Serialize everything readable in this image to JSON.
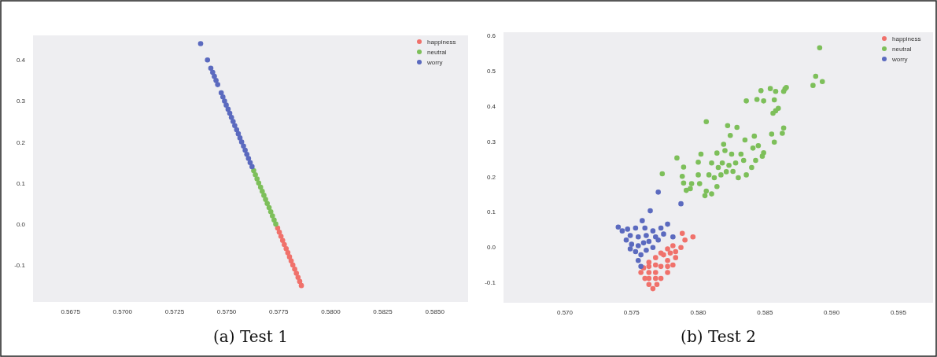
{
  "chart_data": [
    {
      "type": "scatter",
      "title": "(a) Test 1",
      "legend": "top right",
      "marker": "circle",
      "xlim": [
        0.5657,
        0.5866
      ],
      "ylim": [
        -0.19,
        0.46
      ],
      "xticks": [
        0.5675,
        {
          "value": 0.57,
          "label": "0.5700"
        },
        0.5725,
        {
          "value": 0.575,
          "label": "0.5750"
        },
        0.5775,
        {
          "value": 0.58,
          "label": "0.5800"
        },
        0.5825,
        {
          "value": 0.585,
          "label": "0.5850"
        }
      ],
      "yticks": [
        -0.1,
        {
          "value": 0,
          "label": "0.0"
        },
        0.1,
        0.2,
        0.3,
        0.4
      ],
      "series": [
        {
          "name": "happiness",
          "color": "#f0716b",
          "x": [
            0.57745,
            0.57753,
            0.57761,
            0.57769,
            0.57777,
            0.57786,
            0.57794,
            0.57802,
            0.5781,
            0.57818,
            0.57827,
            0.57835,
            0.57843,
            0.57851,
            0.57859
          ],
          "values": [
            -0.01,
            -0.02,
            -0.03,
            -0.04,
            -0.05,
            -0.06,
            -0.07,
            -0.08,
            -0.09,
            -0.1,
            -0.11,
            -0.12,
            -0.13,
            -0.14,
            -0.15
          ]
        },
        {
          "name": "neutral",
          "color": "#7dbf5a",
          "x": [
            0.5763,
            0.57638,
            0.57646,
            0.57654,
            0.57663,
            0.57671,
            0.57679,
            0.57687,
            0.57695,
            0.57704,
            0.57712,
            0.5772,
            0.57728,
            0.57736
          ],
          "values": [
            0.13,
            0.12,
            0.11,
            0.1,
            0.09,
            0.08,
            0.07,
            0.06,
            0.05,
            0.04,
            0.03,
            0.02,
            0.01,
            0.0
          ]
        },
        {
          "name": "worry",
          "color": "#5b6abf",
          "x": [
            0.57375,
            0.57408,
            0.57424,
            0.57433,
            0.57441,
            0.57449,
            0.57457,
            0.57474,
            0.57482,
            0.5749,
            0.57498,
            0.57507,
            0.57515,
            0.57523,
            0.57531,
            0.57539,
            0.57548,
            0.57556,
            0.57564,
            0.57572,
            0.57581,
            0.57589,
            0.57597,
            0.57605,
            0.57613,
            0.57622
          ],
          "values": [
            0.44,
            0.4,
            0.38,
            0.37,
            0.36,
            0.35,
            0.34,
            0.32,
            0.31,
            0.3,
            0.29,
            0.28,
            0.27,
            0.26,
            0.25,
            0.24,
            0.23,
            0.22,
            0.21,
            0.2,
            0.19,
            0.18,
            0.17,
            0.16,
            0.15,
            0.14
          ]
        }
      ]
    },
    {
      "type": "scatter",
      "title": "(b) Test 2",
      "legend": "top right",
      "marker": "circle",
      "xlim": [
        0.5654,
        0.5976
      ],
      "ylim": [
        -0.158,
        0.61
      ],
      "xticks": [
        {
          "value": 0.57,
          "label": "0.570"
        },
        0.575,
        {
          "value": 0.58,
          "label": "0.580"
        },
        0.585,
        {
          "value": 0.59,
          "label": "0.590"
        },
        0.595
      ],
      "yticks": [
        -0.1,
        {
          "value": 0,
          "label": "0.0"
        },
        0.1,
        0.2,
        0.3,
        0.4,
        0.5,
        0.6
      ],
      "series": [
        {
          "name": "happiness",
          "color": "#f0716b",
          "x": [
            0.5788,
            0.5796,
            0.579,
            0.5787,
            0.5781,
            0.5777,
            0.5772,
            0.5768,
            0.5763,
            0.5759,
            0.5757,
            0.576,
            0.5763,
            0.5766,
            0.5769,
            0.5772,
            0.5777,
            0.5781,
            0.5783,
            0.5783,
            0.5768,
            0.5763,
            0.5772,
            0.5777,
            0.5768,
            0.5774,
            0.5779,
            0.5763,
            0.5768,
            0.5777,
            0.5763
          ],
          "values": [
            0.039,
            0.029,
            0.02,
            -0.001,
            0.004,
            -0.005,
            -0.017,
            -0.03,
            -0.043,
            -0.059,
            -0.072,
            -0.089,
            -0.106,
            -0.118,
            -0.106,
            -0.089,
            -0.072,
            -0.051,
            -0.03,
            -0.013,
            -0.072,
            -0.072,
            -0.055,
            -0.038,
            -0.051,
            -0.022,
            -0.017,
            -0.089,
            -0.089,
            -0.055,
            -0.055
          ]
        },
        {
          "name": "neutral",
          "color": "#7dbf5a",
          "x": [
            0.5891,
            0.5888,
            0.5886,
            0.5893,
            0.5865,
            0.5866,
            0.5864,
            0.5854,
            0.5858,
            0.5847,
            0.5844,
            0.5849,
            0.5836,
            0.5857,
            0.586,
            0.5858,
            0.5856,
            0.5806,
            0.5822,
            0.5829,
            0.5864,
            0.5863,
            0.5855,
            0.5824,
            0.5842,
            0.5835,
            0.5857,
            0.5819,
            0.5845,
            0.5849,
            0.5841,
            0.5814,
            0.5802,
            0.5784,
            0.5825,
            0.5832,
            0.582,
            0.5848,
            0.5843,
            0.5834,
            0.5828,
            0.5823,
            0.5818,
            0.5815,
            0.581,
            0.58,
            0.5789,
            0.584,
            0.5836,
            0.583,
            0.5826,
            0.5821,
            0.5817,
            0.5812,
            0.5808,
            0.58,
            0.5788,
            0.5795,
            0.5801,
            0.5789,
            0.5773,
            0.5794,
            0.5791,
            0.5814,
            0.5806,
            0.581,
            0.5805
          ],
          "values": [
            0.566,
            0.485,
            0.459,
            0.47,
            0.449,
            0.453,
            0.442,
            0.45,
            0.442,
            0.444,
            0.419,
            0.415,
            0.415,
            0.418,
            0.394,
            0.387,
            0.38,
            0.356,
            0.345,
            0.34,
            0.338,
            0.323,
            0.321,
            0.317,
            0.315,
            0.304,
            0.298,
            0.292,
            0.288,
            0.268,
            0.281,
            0.267,
            0.264,
            0.253,
            0.264,
            0.264,
            0.274,
            0.258,
            0.246,
            0.246,
            0.239,
            0.232,
            0.239,
            0.226,
            0.239,
            0.241,
            0.227,
            0.226,
            0.205,
            0.197,
            0.215,
            0.214,
            0.205,
            0.197,
            0.205,
            0.205,
            0.201,
            0.18,
            0.18,
            0.182,
            0.208,
            0.166,
            0.161,
            0.172,
            0.159,
            0.151,
            0.146
          ]
        },
        {
          "name": "worry",
          "color": "#5b6abf",
          "x": [
            0.577,
            0.5787,
            0.5764,
            0.5758,
            0.574,
            0.5743,
            0.5747,
            0.5753,
            0.576,
            0.5766,
            0.5772,
            0.5777,
            0.5781,
            0.5774,
            0.5768,
            0.5761,
            0.5755,
            0.5749,
            0.5746,
            0.575,
            0.5755,
            0.5759,
            0.5763,
            0.577,
            0.5766,
            0.5753,
            0.5757,
            0.5755,
            0.5757,
            0.5761,
            0.5749
          ],
          "values": [
            0.156,
            0.123,
            0.103,
            0.075,
            0.057,
            0.046,
            0.051,
            0.054,
            0.054,
            0.046,
            0.054,
            0.065,
            0.029,
            0.037,
            0.029,
            0.033,
            0.029,
            0.033,
            0.02,
            0.008,
            0.004,
            0.012,
            0.016,
            0.02,
            -0.001,
            -0.013,
            -0.022,
            -0.038,
            -0.055,
            -0.009,
            -0.005
          ]
        }
      ]
    }
  ]
}
